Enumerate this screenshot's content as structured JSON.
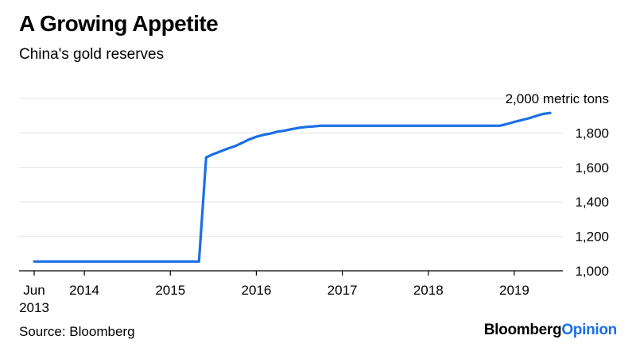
{
  "title": "A Growing Appetite",
  "subtitle": "China's gold reserves",
  "source": "Source: Bloomberg",
  "brand": {
    "part1": "Bloomberg",
    "part2": "Opinion"
  },
  "colors": {
    "line": "#1a6fe6",
    "brand_accent": "#1a6fe6",
    "grid": "#e2e2e2"
  },
  "chart_data": {
    "type": "line",
    "title": "A Growing Appetite",
    "subtitle": "China's gold reserves",
    "y_unit_label": "2,000 metric tons",
    "ylim": [
      1000,
      2000
    ],
    "y_ticks": [
      1000,
      1200,
      1400,
      1600,
      1800,
      2000
    ],
    "y_tick_labels": [
      "1,000",
      "1,200",
      "1,400",
      "1,600",
      "1,800",
      "2,000 metric tons"
    ],
    "y_axis_side": "right",
    "grid": true,
    "xlim": [
      "2013-06",
      "2019-06"
    ],
    "x_ticks": [
      {
        "date": "2013-06",
        "line1": "Jun",
        "line2": "2013"
      },
      {
        "date": "2014-01",
        "line1": "2014",
        "line2": ""
      },
      {
        "date": "2015-01",
        "line1": "2015",
        "line2": ""
      },
      {
        "date": "2016-01",
        "line1": "2016",
        "line2": ""
      },
      {
        "date": "2017-01",
        "line1": "2017",
        "line2": ""
      },
      {
        "date": "2018-01",
        "line1": "2018",
        "line2": ""
      },
      {
        "date": "2019-01",
        "line1": "2019",
        "line2": ""
      }
    ],
    "series": [
      {
        "points": [
          [
            "2013-06",
            1054
          ],
          [
            "2015-05",
            1054
          ],
          [
            "2015-06",
            1658
          ],
          [
            "2015-07",
            1677
          ],
          [
            "2015-08",
            1693
          ],
          [
            "2015-09",
            1709
          ],
          [
            "2015-10",
            1723
          ],
          [
            "2015-11",
            1742
          ],
          [
            "2015-12",
            1762
          ],
          [
            "2016-01",
            1778
          ],
          [
            "2016-02",
            1789
          ],
          [
            "2016-03",
            1797
          ],
          [
            "2016-04",
            1808
          ],
          [
            "2016-05",
            1814
          ],
          [
            "2016-06",
            1823
          ],
          [
            "2016-07",
            1830
          ],
          [
            "2016-08",
            1835
          ],
          [
            "2016-09",
            1838
          ],
          [
            "2016-10",
            1842
          ],
          [
            "2016-11",
            1842
          ],
          [
            "2017-06",
            1842
          ],
          [
            "2018-06",
            1842
          ],
          [
            "2018-11",
            1842
          ],
          [
            "2018-12",
            1852
          ],
          [
            "2019-01",
            1864
          ],
          [
            "2019-02",
            1874
          ],
          [
            "2019-03",
            1885
          ],
          [
            "2019-04",
            1898
          ],
          [
            "2019-05",
            1910
          ],
          [
            "2019-06",
            1916
          ]
        ]
      }
    ]
  }
}
